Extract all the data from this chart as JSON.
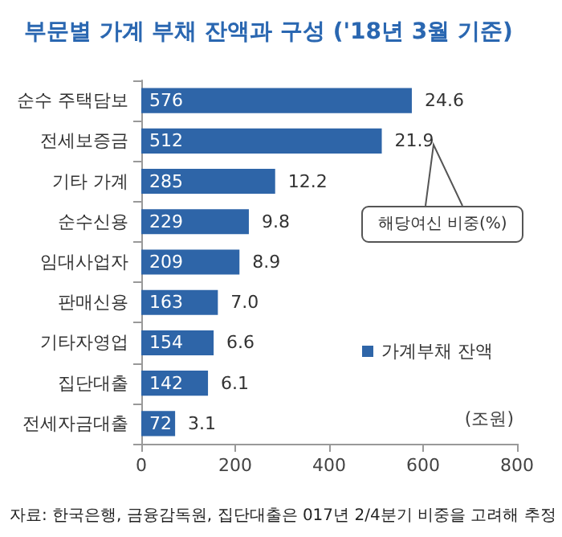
{
  "chart_data": {
    "type": "bar",
    "orientation": "horizontal",
    "title": "부문별 가계 부채 잔액과 구성 ('18년 3월 기준)",
    "xlabel": "(조원)",
    "categories": [
      "순수 주택담보",
      "전세보증금",
      "기타 가계",
      "순수신용",
      "임대사업자",
      "판매신용",
      "기타자영업",
      "집단대출",
      "전세자금대출"
    ],
    "series": [
      {
        "name": "가계부채 잔액",
        "color": "#2e65a8",
        "values": [
          576,
          512,
          285,
          229,
          209,
          163,
          154,
          142,
          72
        ]
      }
    ],
    "xlim": [
      0,
      800
    ],
    "xticks": [
      0,
      200,
      400,
      600,
      800
    ],
    "grid": false,
    "legend": "right",
    "data_labels": true,
    "annotations": [
      {
        "text": "24.6",
        "x": 576,
        "y": "순수 주택담보"
      },
      {
        "text": "21.9",
        "x": 512,
        "y": "전세보증금"
      },
      {
        "text": "12.2",
        "x": 285,
        "y": "기타 가계"
      },
      {
        "text": "9.8",
        "x": 229,
        "y": "순수신용"
      },
      {
        "text": "8.9",
        "x": 209,
        "y": "임대사업자"
      },
      {
        "text": "7.0",
        "x": 163,
        "y": "판매신용"
      },
      {
        "text": "6.6",
        "x": 154,
        "y": "기타자영업"
      },
      {
        "text": "6.1",
        "x": 142,
        "y": "집단대출"
      },
      {
        "text": "3.1",
        "x": 72,
        "y": "전세자금대출"
      },
      "해당여신 비중(%)",
      "자료: 한국은행, 금융감독원, 집단대출은 017년 2/4분기 비중을 고려해 추정"
    ]
  }
}
